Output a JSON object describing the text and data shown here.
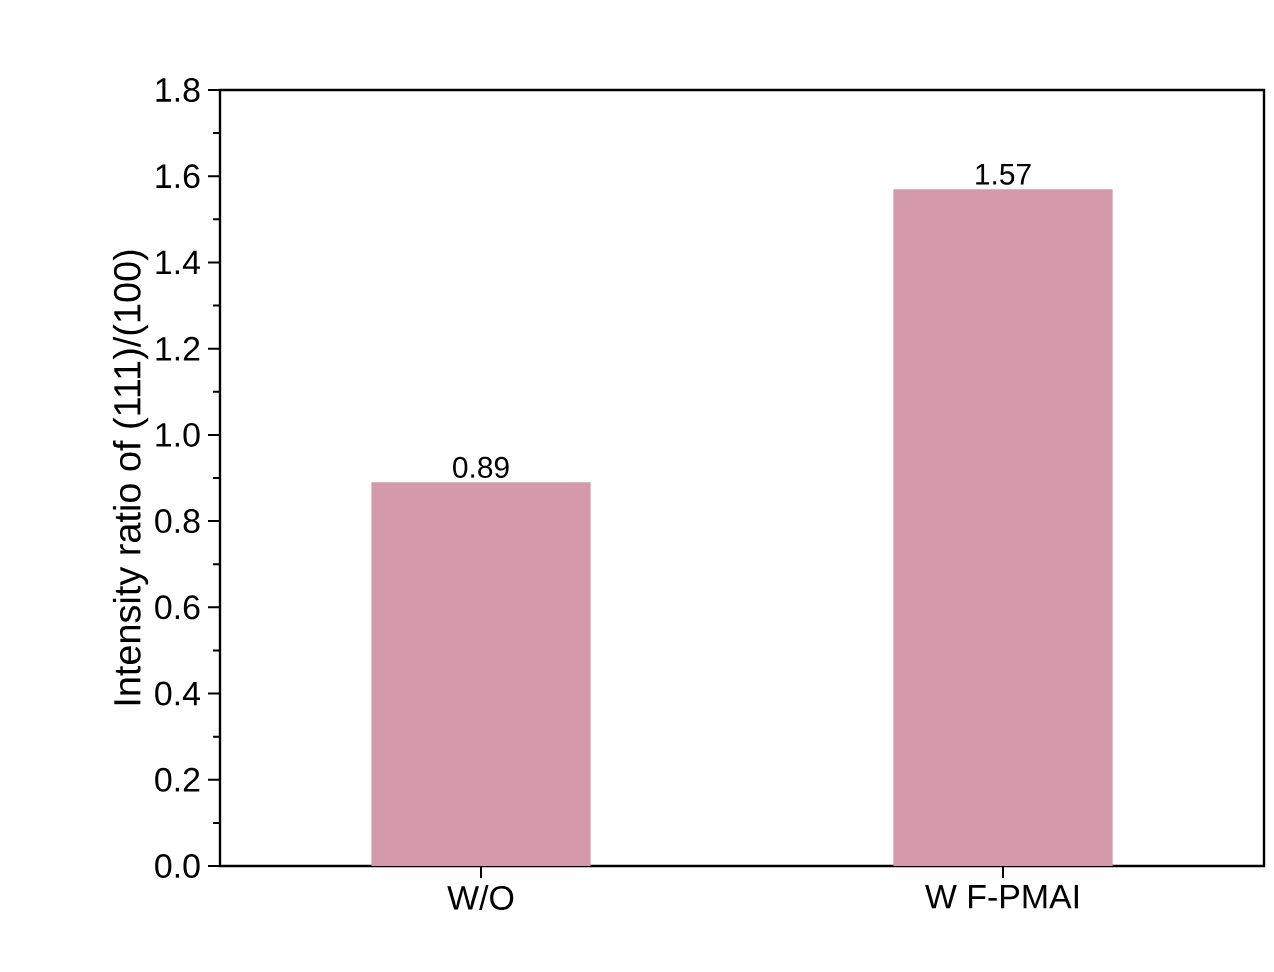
{
  "chart_data": {
    "type": "bar",
    "ylabel": "Intensity ratio of (111)/(100)",
    "categories": [
      "W/O",
      "W F-PMAI"
    ],
    "values": [
      0.89,
      1.57
    ],
    "value_labels": [
      "0.89",
      "1.57"
    ],
    "color": "#d49aab",
    "ylim": [
      0,
      1.8
    ],
    "yticks": [
      {
        "value": 0,
        "label": "0.0"
      },
      {
        "value": 0.2,
        "label": "0.2"
      },
      {
        "value": 0.4,
        "label": "0.4"
      },
      {
        "value": 0.6,
        "label": "0.6"
      },
      {
        "value": 0.8,
        "label": "0.8"
      },
      {
        "value": 1.0,
        "label": "1.0"
      },
      {
        "value": 1.2,
        "label": "1.2"
      },
      {
        "value": 1.4,
        "label": "1.4"
      },
      {
        "value": 1.6,
        "label": "1.6"
      },
      {
        "value": 1.8,
        "label": "1.8"
      }
    ],
    "grid": false
  }
}
